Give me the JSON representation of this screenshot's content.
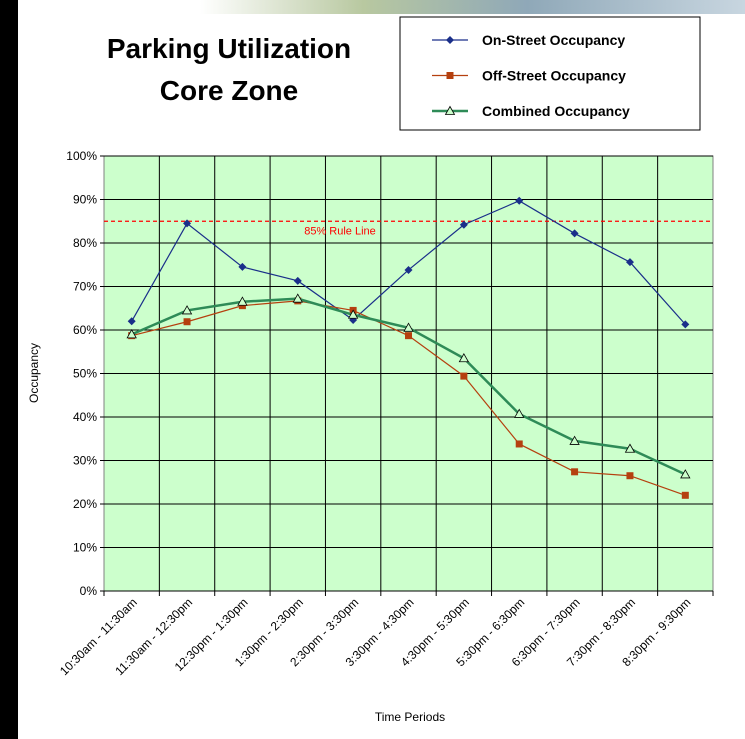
{
  "chart_data": {
    "type": "line",
    "title": [
      "Parking Utilization",
      "Core Zone"
    ],
    "x_label": "Time Periods",
    "y_label": "Occupancy",
    "categories": [
      "10:30am - 11:30am",
      "11:30am - 12:30pm",
      "12:30pm - 1:30pm",
      "1:30pm - 2:30pm",
      "2:30pm - 3:30pm",
      "3:30pm - 4:30pm",
      "4:30pm - 5:30pm",
      "5:30pm - 6:30pm",
      "6:30pm - 7:30pm",
      "7:30pm - 8:30pm",
      "8:30pm - 9:30pm"
    ],
    "series": [
      {
        "name": "On-Street Occupancy",
        "color": "#1a2f8a",
        "marker": "diamond",
        "values": [
          62,
          84.5,
          74.5,
          71.3,
          62.3,
          73.8,
          84.2,
          89.7,
          82.2,
          75.6,
          61.3
        ]
      },
      {
        "name": "Off-Street Occupancy",
        "color": "#b5400f",
        "marker": "square",
        "values": [
          58.7,
          61.9,
          65.6,
          66.7,
          64.5,
          58.7,
          49.4,
          33.8,
          27.4,
          26.5,
          22
        ]
      },
      {
        "name": "Combined Occupancy",
        "color": "#2e8b57",
        "marker": "triangle",
        "values": [
          59,
          64.5,
          66.5,
          67.2,
          63.5,
          60.5,
          53.5,
          40.7,
          34.5,
          32.7,
          26.8
        ]
      }
    ],
    "rule_line": {
      "value": 85,
      "label": "85% Rule Line",
      "color": "#ff0000"
    },
    "ylim": [
      0,
      100
    ],
    "yticks": [
      {
        "value": 0,
        "label": "0%"
      },
      {
        "value": 10,
        "label": "10%"
      },
      {
        "value": 20,
        "label": "20%"
      },
      {
        "value": 30,
        "label": "30%"
      },
      {
        "value": 40,
        "label": "40%"
      },
      {
        "value": 50,
        "label": "50%"
      },
      {
        "value": 60,
        "label": "60%"
      },
      {
        "value": 70,
        "label": "70%"
      },
      {
        "value": 80,
        "label": "80%"
      },
      {
        "value": 90,
        "label": "90%"
      },
      {
        "value": 100,
        "label": "100%"
      }
    ],
    "grid": true,
    "plot_background": "#ccffcc",
    "legend_position": "top-right"
  }
}
